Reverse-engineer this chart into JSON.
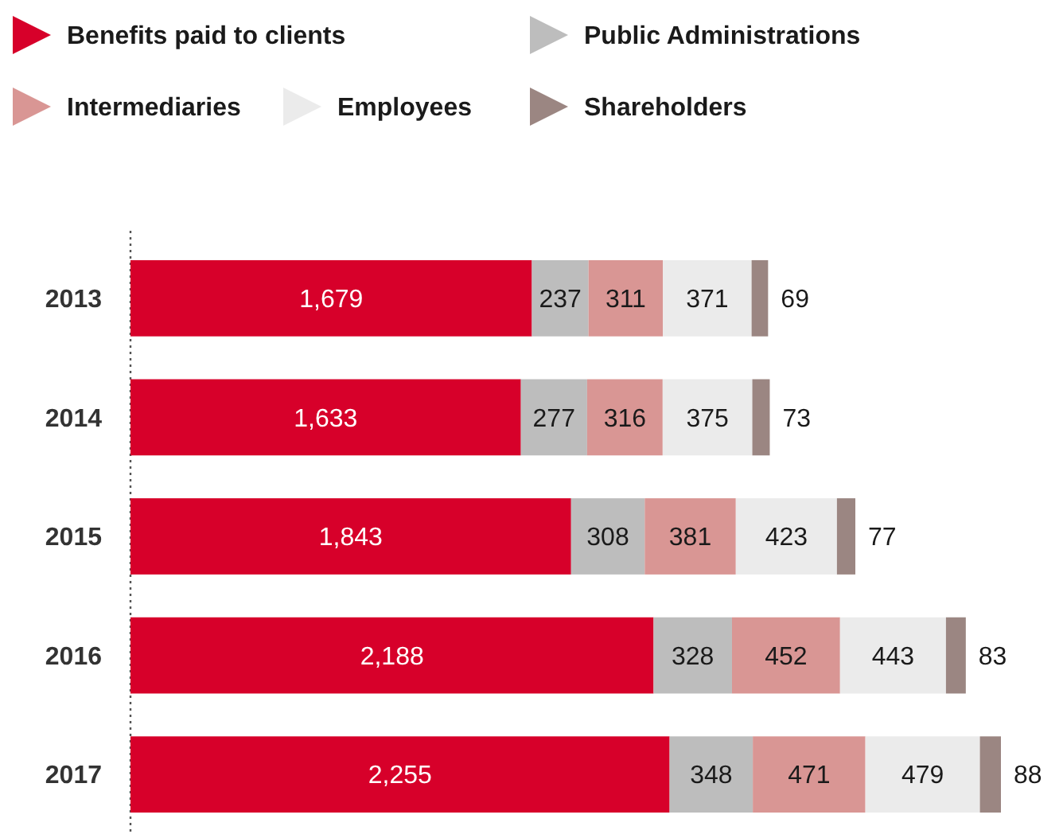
{
  "chart_data": {
    "type": "bar",
    "orientation": "horizontal",
    "stacked": true,
    "data_labels": true,
    "legend": "top left",
    "categories": [
      "2013",
      "2014",
      "2015",
      "2016",
      "2017"
    ],
    "series": [
      {
        "name": "Benefits paid to clients",
        "color": "#d7002a",
        "values": [
          1679,
          1633,
          1843,
          2188,
          2255
        ],
        "value_labels": [
          "1,679",
          "1,633",
          "1,843",
          "2,188",
          "2,255"
        ]
      },
      {
        "name": "Public Administrations",
        "color": "#bdbdbd",
        "values": [
          237,
          277,
          308,
          328,
          348
        ]
      },
      {
        "name": "Intermediaries",
        "color": "#d99694",
        "values": [
          311,
          316,
          381,
          452,
          471
        ]
      },
      {
        "name": "Employees",
        "color": "#ebebeb",
        "values": [
          371,
          375,
          423,
          443,
          479
        ]
      },
      {
        "name": "Shareholders",
        "color": "#9b8682",
        "values": [
          69,
          73,
          77,
          83,
          88
        ]
      }
    ]
  }
}
